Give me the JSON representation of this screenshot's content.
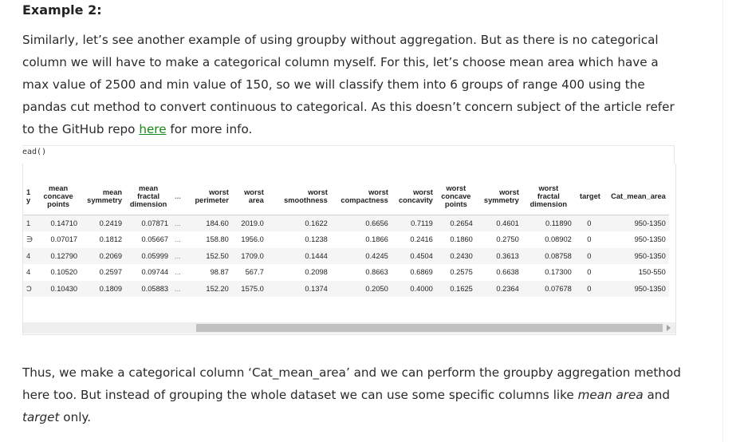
{
  "heading": "Example 2:",
  "paragraph1": {
    "before_link": "Similarly, let’s see another example of using groupby without aggregation. But as there is no categorical column we will have to make a categorical column myself. For this, let’s choose mean area which have a max value of 2500 and min value of 150, so we will classify them into 6 groups of range 400 using the pandas cut method to convert continuous to categorical. As this doesn’t concern subject of the article refer to the GitHub repo ",
    "link": "here",
    "after_link": " for more info."
  },
  "code_label": "ead()",
  "table": {
    "headers": [
      {
        "lines": [
          "1",
          "y"
        ]
      },
      {
        "lines": [
          "mean",
          "concave",
          "points"
        ]
      },
      {
        "lines": [
          "mean",
          "symmetry"
        ]
      },
      {
        "lines": [
          "mean",
          "fractal",
          "dimension"
        ]
      },
      {
        "lines": [
          "..."
        ]
      },
      {
        "lines": [
          "worst",
          "perimeter"
        ]
      },
      {
        "lines": [
          "worst",
          "area"
        ]
      },
      {
        "lines": [
          "worst",
          "smoothness"
        ]
      },
      {
        "lines": [
          "worst",
          "compactness"
        ]
      },
      {
        "lines": [
          "worst",
          "concavity"
        ]
      },
      {
        "lines": [
          "worst",
          "concave",
          "points"
        ]
      },
      {
        "lines": [
          "worst",
          "symmetry"
        ]
      },
      {
        "lines": [
          "worst",
          "fractal",
          "dimension"
        ]
      },
      {
        "lines": [
          "target"
        ]
      },
      {
        "lines": [
          "Cat_mean_area"
        ]
      }
    ],
    "rows": [
      [
        "1",
        "0.14710",
        "0.2419",
        "0.07871",
        "...",
        "184.60",
        "2019.0",
        "0.1622",
        "0.6656",
        "0.7119",
        "0.2654",
        "0.4601",
        "0.11890",
        "0",
        "950-1350"
      ],
      [
        "∋",
        "0.07017",
        "0.1812",
        "0.05667",
        "...",
        "158.80",
        "1956.0",
        "0.1238",
        "0.1866",
        "0.2416",
        "0.1860",
        "0.2750",
        "0.08902",
        "0",
        "950-1350"
      ],
      [
        "4",
        "0.12790",
        "0.2069",
        "0.05999",
        "...",
        "152.50",
        "1709.0",
        "0.1444",
        "0.4245",
        "0.4504",
        "0.2430",
        "0.3613",
        "0.08758",
        "0",
        "950-1350"
      ],
      [
        "4",
        "0.10520",
        "0.2597",
        "0.09744",
        "...",
        "98.87",
        "567.7",
        "0.2098",
        "0.8663",
        "0.6869",
        "0.2575",
        "0.6638",
        "0.17300",
        "0",
        "150-550"
      ],
      [
        "Ͻ",
        "0.10430",
        "0.1809",
        "0.05883",
        "...",
        "152.20",
        "1575.0",
        "0.1374",
        "0.2050",
        "0.4000",
        "0.1625",
        "0.2364",
        "0.07678",
        "0",
        "950-1350"
      ]
    ]
  },
  "paragraph2": {
    "part1": "Thus, we make a categorical column ‘Cat_mean_area’ and we can perform the groupby aggregation method here too. But instead of grouping the whole dataset we can use some specific columns like ",
    "em1": "mean area",
    "part2": " and ",
    "em2": "target",
    "part3": " only."
  }
}
